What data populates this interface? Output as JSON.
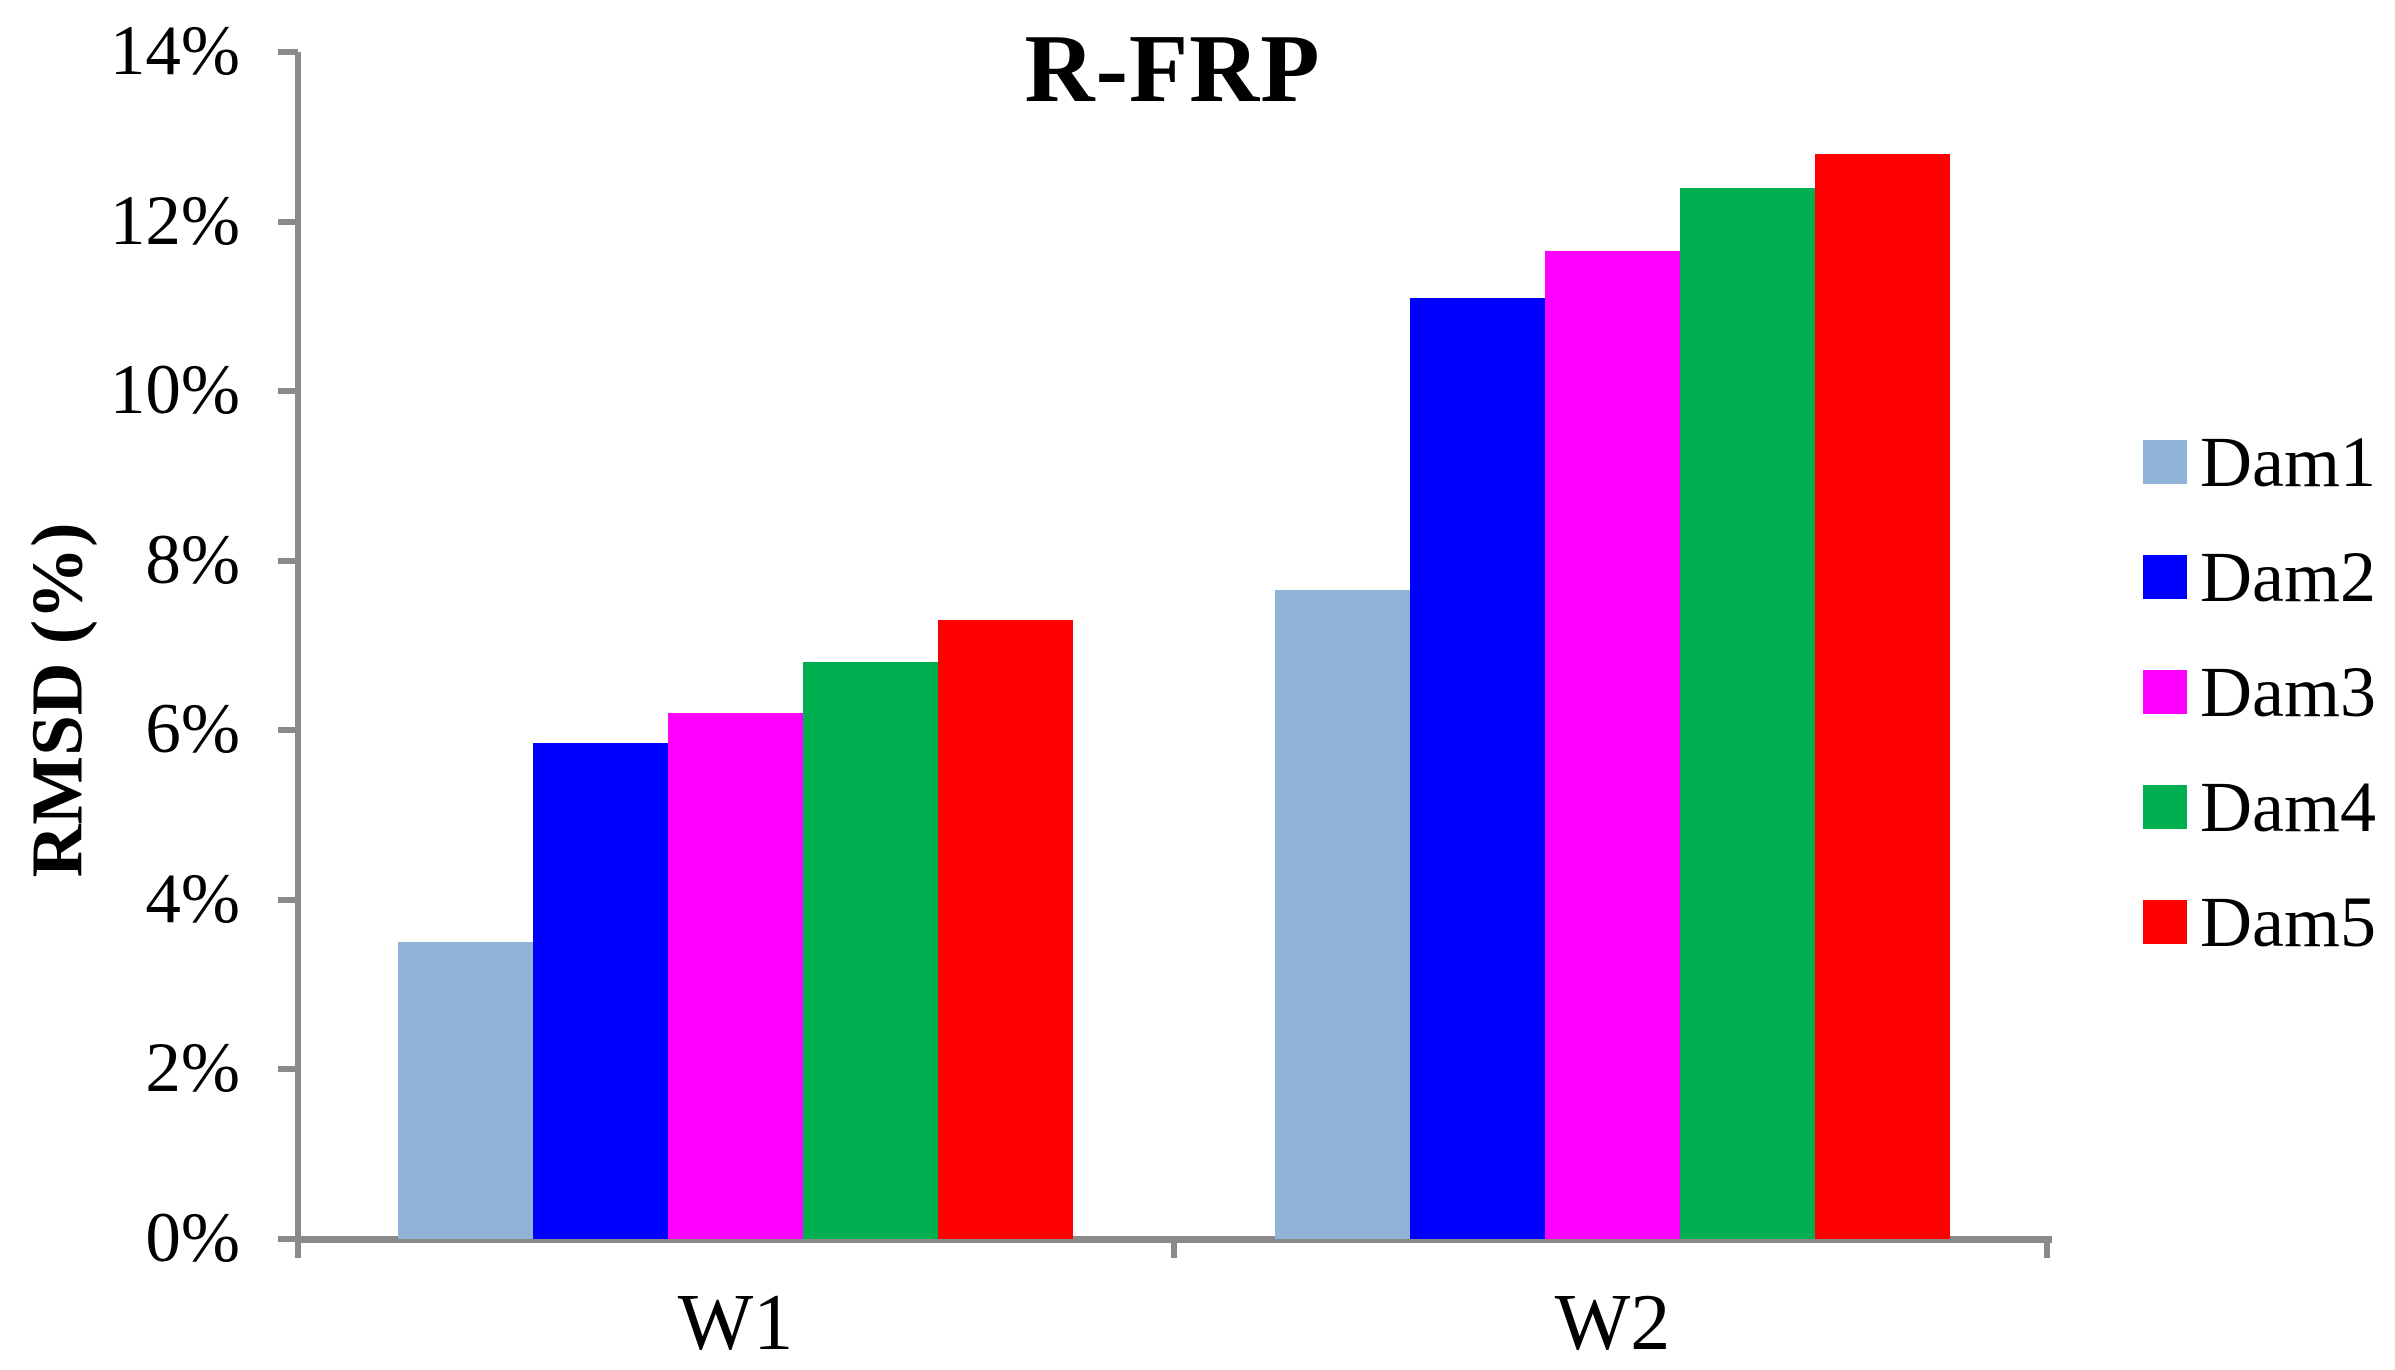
{
  "chart": {
    "title": "R-FRP",
    "y_axis_title": "RMSD (%)"
  },
  "chart_data": {
    "type": "bar",
    "title": "R-FRP",
    "xlabel": "",
    "ylabel": "RMSD (%)",
    "categories": [
      "W1",
      "W2"
    ],
    "series": [
      {
        "name": "Dam1",
        "color": "#8fb4d8",
        "values": [
          3.5,
          7.65
        ]
      },
      {
        "name": "Dam2",
        "color": "#0000ff",
        "values": [
          5.85,
          11.1
        ]
      },
      {
        "name": "Dam3",
        "color": "#ff00ff",
        "values": [
          6.2,
          11.65
        ]
      },
      {
        "name": "Dam4",
        "color": "#00b050",
        "values": [
          6.8,
          12.4
        ]
      },
      {
        "name": "Dam5",
        "color": "#ff0000",
        "values": [
          7.3,
          12.8
        ]
      }
    ],
    "ylim": [
      0,
      14
    ],
    "ytick_step": 2,
    "ytick_labels": [
      "0%",
      "2%",
      "4%",
      "6%",
      "8%",
      "10%",
      "12%",
      "14%"
    ],
    "grid": false,
    "legend_position": "right",
    "axis_color": "#8a8a8a",
    "text_color": "#000000"
  }
}
